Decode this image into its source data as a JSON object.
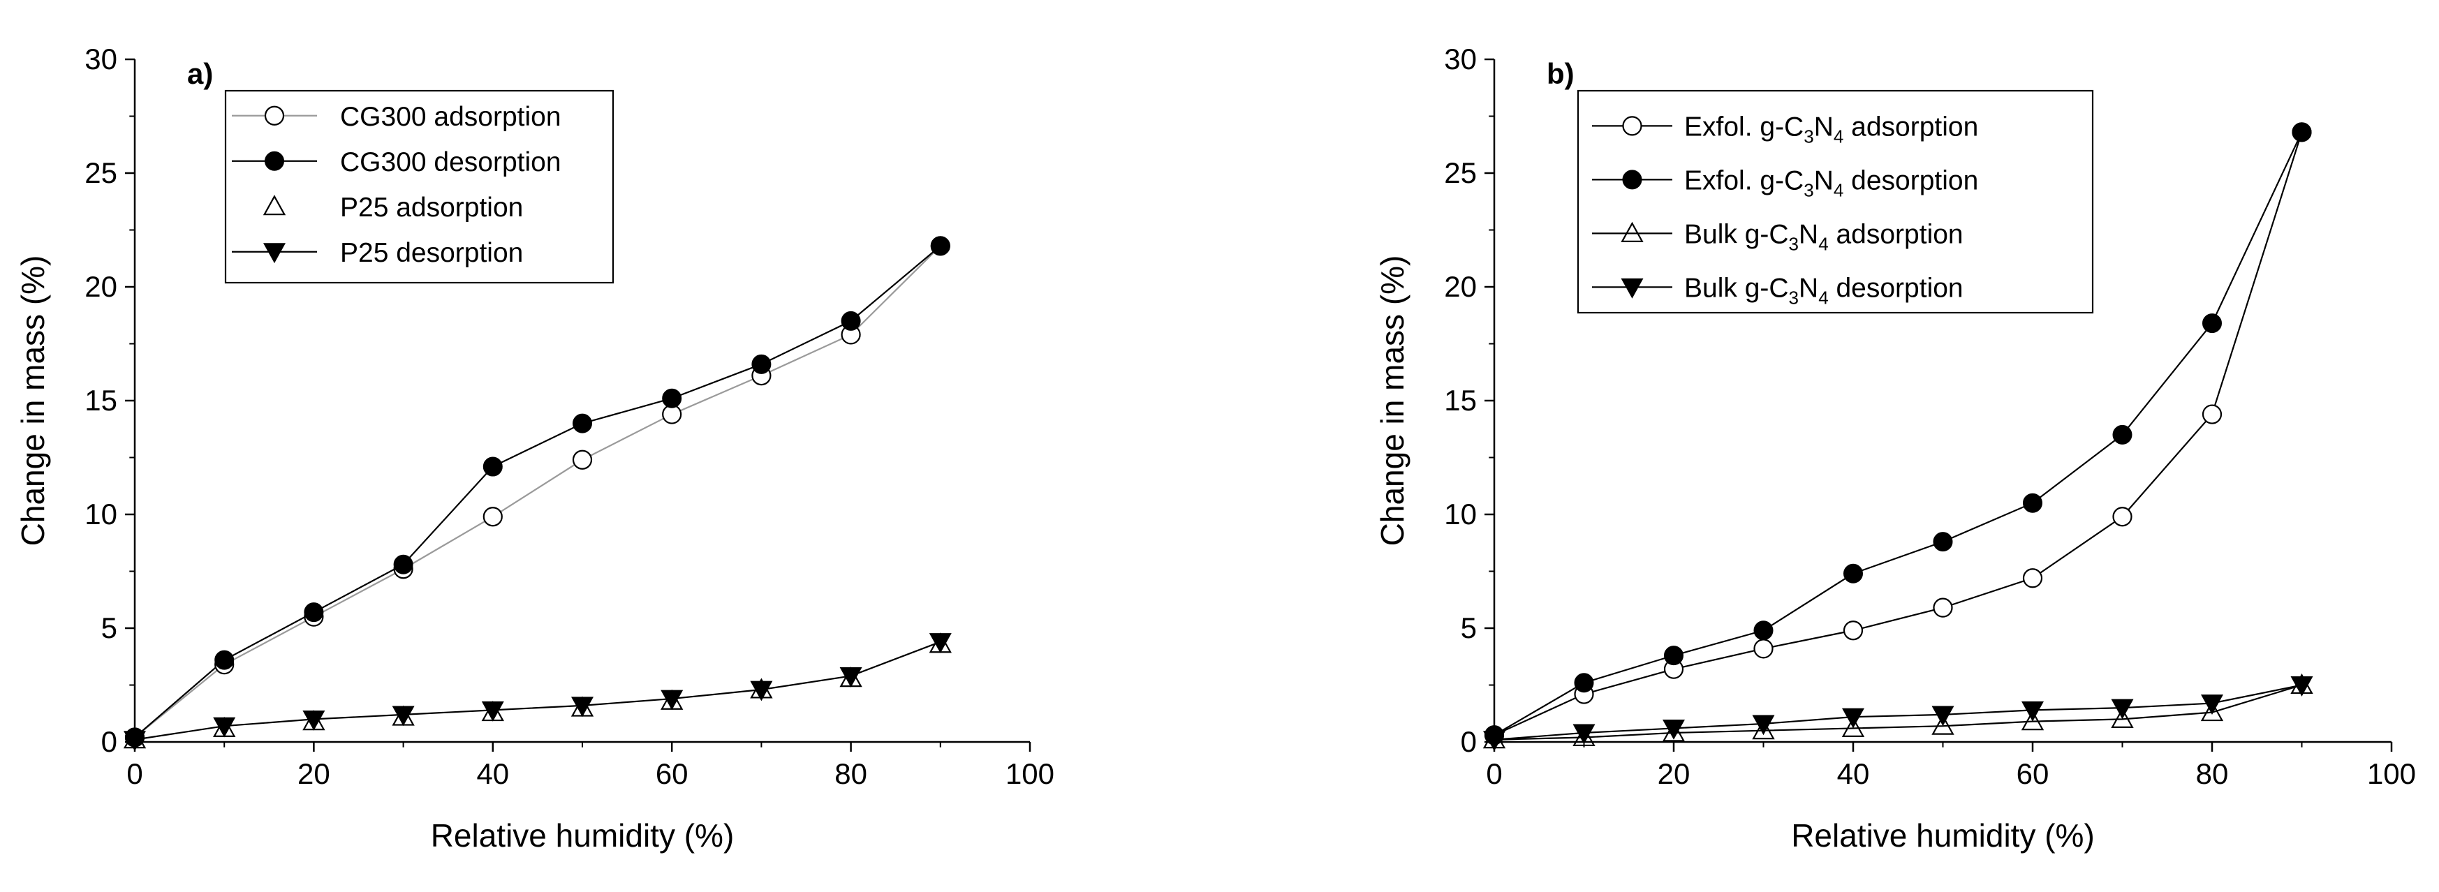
{
  "chart_data": [
    {
      "type": "line",
      "panel_label": "a)",
      "xlabel": "Relative humidity (%)",
      "ylabel": "Change in mass (%)",
      "xlim": [
        0,
        100
      ],
      "ylim": [
        0,
        30
      ],
      "xticks": [
        0,
        20,
        40,
        60,
        80,
        100
      ],
      "yticks": [
        0,
        5,
        10,
        15,
        20,
        25,
        30
      ],
      "legend_position": "top-left",
      "series": [
        {
          "name": "CG300 adsorption",
          "marker": "circle-open",
          "line": true,
          "line_color": "#9a9a9a",
          "x": [
            0,
            10,
            20,
            30,
            40,
            50,
            60,
            70,
            80,
            90
          ],
          "y": [
            0.2,
            3.4,
            5.5,
            7.6,
            9.9,
            12.4,
            14.4,
            16.1,
            17.9,
            21.8
          ]
        },
        {
          "name": "CG300 desorption",
          "marker": "circle-filled",
          "line": true,
          "line_color": "#000000",
          "x": [
            0,
            10,
            20,
            30,
            40,
            50,
            60,
            70,
            80,
            90
          ],
          "y": [
            0.2,
            3.6,
            5.7,
            7.8,
            12.1,
            14.0,
            15.1,
            16.6,
            18.5,
            21.8
          ]
        },
        {
          "name": "P25 adsorption",
          "marker": "triangle-open",
          "line": false,
          "line_color": "#9a9a9a",
          "x": [
            0,
            10,
            20,
            30,
            40,
            50,
            60,
            70,
            80,
            90
          ],
          "y": [
            0.1,
            0.6,
            0.9,
            1.1,
            1.3,
            1.5,
            1.8,
            2.3,
            2.8,
            4.3
          ]
        },
        {
          "name": "P25 desorption",
          "marker": "triangle-down-filled",
          "line": true,
          "line_color": "#000000",
          "x": [
            0,
            10,
            20,
            30,
            40,
            50,
            60,
            70,
            80,
            90
          ],
          "y": [
            0.1,
            0.7,
            1.0,
            1.2,
            1.4,
            1.6,
            1.9,
            2.3,
            2.9,
            4.4
          ]
        }
      ]
    },
    {
      "type": "line",
      "panel_label": "b)",
      "xlabel": "Relative humidity (%)",
      "ylabel": "Change in mass (%)",
      "xlim": [
        0,
        100
      ],
      "ylim": [
        0,
        30
      ],
      "xticks": [
        0,
        20,
        40,
        60,
        80,
        100
      ],
      "yticks": [
        0,
        5,
        10,
        15,
        20,
        25,
        30
      ],
      "legend_position": "top-left",
      "series": [
        {
          "name": "Exfol. g-C3N4 adsorption",
          "legend_parts": [
            "Exfol. g-C",
            "3",
            "N",
            "4",
            " adsorption"
          ],
          "marker": "circle-open",
          "line": true,
          "line_color": "#000000",
          "x": [
            0,
            10,
            20,
            30,
            40,
            50,
            60,
            70,
            80,
            90
          ],
          "y": [
            0.3,
            2.1,
            3.2,
            4.1,
            4.9,
            5.9,
            7.2,
            9.9,
            14.4,
            26.8
          ]
        },
        {
          "name": "Exfol. g-C3N4 desorption",
          "legend_parts": [
            "Exfol. g-C",
            "3",
            "N",
            "4",
            " desorption"
          ],
          "marker": "circle-filled",
          "line": true,
          "line_color": "#000000",
          "x": [
            0,
            10,
            20,
            30,
            40,
            50,
            60,
            70,
            80,
            90
          ],
          "y": [
            0.3,
            2.6,
            3.8,
            4.9,
            7.4,
            8.8,
            10.5,
            13.5,
            18.4,
            26.8
          ]
        },
        {
          "name": "Bulk g-C3N4 adsorption",
          "legend_parts": [
            "Bulk g-C",
            "3",
            "N",
            "4",
            " adsorption"
          ],
          "marker": "triangle-open",
          "line": true,
          "line_color": "#000000",
          "x": [
            0,
            10,
            20,
            30,
            40,
            50,
            60,
            70,
            80,
            90
          ],
          "y": [
            0.1,
            0.2,
            0.4,
            0.5,
            0.6,
            0.7,
            0.9,
            1.0,
            1.3,
            2.5
          ]
        },
        {
          "name": "Bulk g-C3N4 desorption",
          "legend_parts": [
            "Bulk g-C",
            "3",
            "N",
            "4",
            " desorption"
          ],
          "marker": "triangle-down-filled",
          "line": true,
          "line_color": "#000000",
          "x": [
            0,
            10,
            20,
            30,
            40,
            50,
            60,
            70,
            80,
            90
          ],
          "y": [
            0.1,
            0.4,
            0.6,
            0.8,
            1.1,
            1.2,
            1.4,
            1.5,
            1.7,
            2.5
          ]
        }
      ]
    }
  ]
}
